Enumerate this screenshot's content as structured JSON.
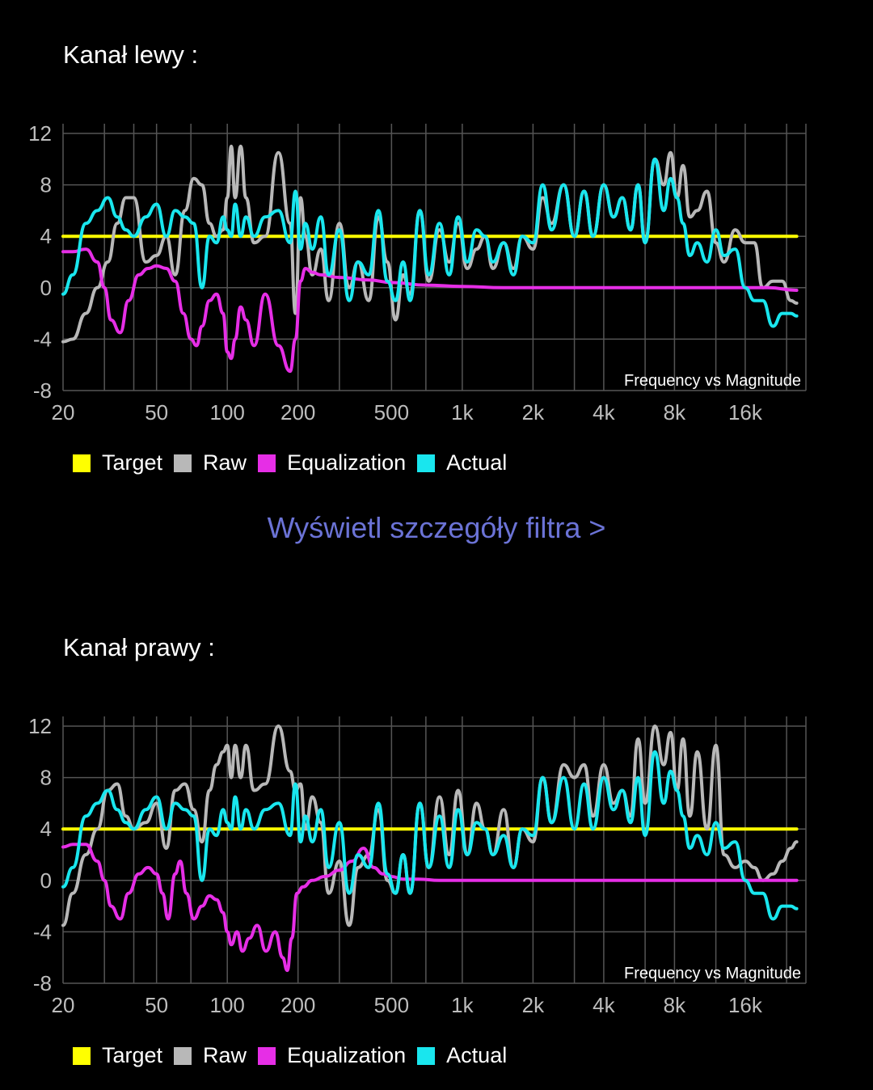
{
  "link": {
    "filter_details": "Wyświetl szczegóły filtra >"
  },
  "legend": {
    "target": "Target",
    "raw": "Raw",
    "equalization": "Equalization",
    "actual": "Actual"
  },
  "colors": {
    "target": "#ffff00",
    "raw": "#b8b8b8",
    "equalization": "#e62ee6",
    "actual": "#19e6ee",
    "grid": "#555555",
    "link": "#6b73d6"
  },
  "chart_data": [
    {
      "title": "Kanał lewy  :",
      "type": "line",
      "annotation": "Frequency vs Magnitude",
      "x_scale": "log",
      "xlim": [
        20,
        29000
      ],
      "ylim": [
        -8,
        12
      ],
      "x_ticks": [
        20,
        50,
        100,
        200,
        500,
        1000,
        2000,
        4000,
        8000,
        16000
      ],
      "x_tick_labels": [
        "20",
        "50",
        "100",
        "200",
        "500",
        "1k",
        "2k",
        "4k",
        "8k",
        "16k"
      ],
      "y_ticks": [
        12,
        8,
        4,
        0,
        -4,
        -8
      ],
      "y_tick_labels": [
        "12",
        "8",
        "4",
        "0",
        "-4",
        "-8"
      ],
      "grid": true,
      "legend_position": "bottom-left",
      "series": [
        {
          "name": "Target",
          "color": "#ffff00",
          "x": [
            20,
            26500
          ],
          "y": [
            4,
            4
          ]
        },
        {
          "name": "Raw",
          "color": "#b8b8b8",
          "x": [
            20,
            22,
            25,
            28,
            31,
            34,
            37,
            40,
            45,
            50,
            55,
            60,
            66,
            72,
            78,
            84,
            90,
            96,
            100,
            104,
            108,
            114,
            120,
            130,
            145,
            165,
            185,
            195,
            205,
            215,
            230,
            250,
            270,
            300,
            330,
            360,
            400,
            440,
            480,
            520,
            560,
            600,
            660,
            720,
            800,
            880,
            960,
            1050,
            1150,
            1250,
            1350,
            1500,
            1650,
            1800,
            2000,
            2200,
            2400,
            2700,
            3000,
            3300,
            3600,
            4000,
            4400,
            4800,
            5200,
            5600,
            6000,
            6600,
            7200,
            7700,
            8200,
            8700,
            9300,
            10000,
            11000,
            12000,
            13000,
            14500,
            16000,
            17500,
            19000,
            21000,
            23000,
            25000,
            26500
          ],
          "y": [
            -4.2,
            -4,
            -2,
            0,
            2,
            5,
            7,
            7,
            2,
            2.5,
            4,
            1,
            6,
            8.5,
            8,
            5,
            4,
            4.5,
            7,
            11,
            7,
            11,
            7,
            3.5,
            4,
            10.5,
            5,
            -2,
            7,
            4,
            1,
            3,
            -1,
            5,
            0,
            2,
            -1,
            5.5,
            2,
            -2.5,
            1,
            -0.5,
            6,
            0.5,
            4.5,
            2,
            5,
            1.5,
            3,
            4,
            1.5,
            3.5,
            1.5,
            4,
            3,
            7,
            5,
            8,
            4,
            7.5,
            4,
            8,
            5.5,
            7,
            4.5,
            8,
            3.5,
            10,
            8,
            10.5,
            7,
            9.5,
            5.5,
            6,
            7.5,
            3.5,
            2,
            4.5,
            3.5,
            3.5,
            0,
            0.5,
            0.5,
            -1,
            -1.2
          ]
        },
        {
          "name": "Equalization",
          "color": "#e62ee6",
          "x": [
            20,
            22,
            25,
            28,
            30,
            32,
            35,
            38,
            42,
            46,
            50,
            55,
            60,
            65,
            70,
            74,
            78,
            84,
            90,
            96,
            100,
            104,
            108,
            114,
            120,
            130,
            145,
            165,
            185,
            195,
            205,
            215,
            230,
            250,
            300,
            400,
            500,
            700,
            1000,
            1500,
            2000,
            4000,
            8000,
            16000,
            20000,
            26500
          ],
          "y": [
            2.8,
            2.8,
            3,
            2,
            0,
            -2.5,
            -3.5,
            -1,
            1,
            1.5,
            1.7,
            1.5,
            0.5,
            -2,
            -4,
            -4.5,
            -3,
            -1,
            -0.5,
            -2,
            -5,
            -5.5,
            -4,
            -1.5,
            -2.5,
            -4.5,
            -0.5,
            -4.5,
            -6.5,
            -4,
            0.5,
            1.5,
            1.2,
            1,
            0.8,
            0.6,
            0.4,
            0.2,
            0.1,
            0,
            0,
            0,
            0,
            0,
            0,
            -0.2
          ]
        },
        {
          "name": "Actual",
          "color": "#19e6ee",
          "x": [
            20,
            22,
            25,
            28,
            31,
            34,
            37,
            40,
            45,
            50,
            55,
            60,
            66,
            72,
            78,
            84,
            90,
            96,
            100,
            104,
            108,
            114,
            120,
            130,
            145,
            165,
            185,
            195,
            205,
            215,
            230,
            250,
            270,
            300,
            330,
            360,
            400,
            440,
            480,
            520,
            560,
            600,
            660,
            720,
            800,
            880,
            960,
            1050,
            1150,
            1250,
            1350,
            1500,
            1650,
            1800,
            2000,
            2200,
            2400,
            2700,
            3000,
            3300,
            3600,
            4000,
            4400,
            4800,
            5200,
            5600,
            6000,
            6600,
            7200,
            7700,
            8200,
            8700,
            9300,
            10000,
            11000,
            12000,
            13000,
            14500,
            16000,
            17500,
            19000,
            21000,
            23000,
            25000,
            26500
          ],
          "y": [
            -0.5,
            1,
            5,
            6,
            7,
            5.5,
            4.5,
            4,
            5.5,
            6.5,
            4,
            6,
            5.5,
            5,
            0,
            4,
            3.5,
            5.5,
            4.5,
            4,
            6.5,
            4,
            5.5,
            4,
            5.5,
            6,
            3.5,
            7.5,
            3,
            5,
            3,
            5.5,
            1,
            4.5,
            -1,
            2,
            1,
            6,
            0.5,
            -1,
            2,
            -1,
            6,
            1,
            5,
            1,
            5.5,
            2,
            4.5,
            4,
            2,
            3.5,
            1,
            4,
            3.5,
            8,
            4.5,
            8,
            4,
            7.5,
            4,
            8,
            5.5,
            7,
            4.5,
            8,
            3.5,
            10,
            6,
            8.5,
            7,
            5,
            2.5,
            3.5,
            2,
            4.5,
            2.5,
            3,
            0,
            -1,
            -1,
            -3,
            -2,
            -2,
            -2.2
          ]
        }
      ]
    },
    {
      "title": "Kanał prawy  :",
      "type": "line",
      "annotation": "Frequency vs Magnitude",
      "x_scale": "log",
      "xlim": [
        20,
        29000
      ],
      "ylim": [
        -8,
        12
      ],
      "x_ticks": [
        20,
        50,
        100,
        200,
        500,
        1000,
        2000,
        4000,
        8000,
        16000
      ],
      "x_tick_labels": [
        "20",
        "50",
        "100",
        "200",
        "500",
        "1k",
        "2k",
        "4k",
        "8k",
        "16k"
      ],
      "y_ticks": [
        12,
        8,
        4,
        0,
        -4,
        -8
      ],
      "y_tick_labels": [
        "12",
        "8",
        "4",
        "0",
        "-4",
        "-8"
      ],
      "grid": true,
      "legend_position": "bottom-left",
      "series": [
        {
          "name": "Target",
          "color": "#ffff00",
          "x": [
            20,
            26500
          ],
          "y": [
            4,
            4
          ]
        },
        {
          "name": "Raw",
          "color": "#b8b8b8",
          "x": [
            20,
            22,
            25,
            28,
            31,
            34,
            37,
            40,
            45,
            50,
            55,
            60,
            66,
            72,
            78,
            84,
            90,
            96,
            100,
            104,
            108,
            114,
            120,
            130,
            145,
            165,
            185,
            195,
            205,
            215,
            230,
            250,
            270,
            300,
            330,
            360,
            400,
            440,
            480,
            520,
            560,
            600,
            660,
            720,
            800,
            880,
            960,
            1050,
            1150,
            1250,
            1350,
            1500,
            1650,
            1800,
            2000,
            2200,
            2400,
            2700,
            3000,
            3300,
            3600,
            4000,
            4400,
            4800,
            5200,
            5600,
            6000,
            6600,
            7200,
            7700,
            8200,
            8700,
            9300,
            10000,
            11000,
            12000,
            13000,
            14500,
            16000,
            17500,
            19000,
            21000,
            23000,
            25000,
            26500
          ],
          "y": [
            -3.5,
            -1,
            2,
            4,
            7,
            7.5,
            5,
            4,
            4.5,
            6,
            2.5,
            7,
            7.5,
            5.5,
            3,
            7,
            9,
            10,
            10.5,
            8,
            10.5,
            8,
            10.5,
            7,
            7.5,
            12,
            8.5,
            7,
            7.5,
            4,
            6.5,
            4.5,
            -1,
            1.5,
            -3.5,
            1,
            2,
            5.5,
            0,
            -1,
            2,
            -1,
            6,
            1,
            6.5,
            2,
            7,
            2,
            6,
            4,
            2,
            5.5,
            1,
            4,
            3,
            8,
            4.5,
            9,
            8,
            9,
            5,
            9,
            6,
            7,
            5,
            11,
            6,
            12,
            9,
            11.5,
            7,
            11,
            5,
            10,
            4,
            10.5,
            2,
            1,
            1.5,
            1,
            0,
            0.5,
            1.5,
            2.5,
            3
          ]
        },
        {
          "name": "Equalization",
          "color": "#e62ee6",
          "x": [
            20,
            22,
            25,
            28,
            30,
            32,
            35,
            38,
            42,
            46,
            50,
            53,
            56,
            60,
            63,
            67,
            72,
            78,
            84,
            90,
            96,
            100,
            104,
            110,
            116,
            124,
            134,
            146,
            160,
            172,
            180,
            188,
            198,
            210,
            230,
            260,
            300,
            340,
            380,
            420,
            460,
            500,
            560,
            650,
            800,
            1000,
            2000,
            4000,
            8000,
            16000,
            20000,
            26500
          ],
          "y": [
            2.6,
            2.8,
            2.8,
            1.5,
            0,
            -2,
            -3,
            -1,
            0.5,
            1,
            0.5,
            -1,
            -3,
            0.5,
            1.5,
            -1,
            -3,
            -2,
            -1.2,
            -1.5,
            -2.5,
            -4,
            -5,
            -4,
            -5.5,
            -4.5,
            -3.5,
            -5.5,
            -4,
            -6,
            -7,
            -4.5,
            -1,
            -0.5,
            0,
            0.3,
            0.8,
            1.5,
            2.5,
            1,
            0.5,
            0.3,
            0.1,
            0.1,
            0,
            0,
            0,
            0,
            0,
            0,
            0,
            0
          ]
        },
        {
          "name": "Actual",
          "color": "#19e6ee",
          "x": [
            20,
            22,
            25,
            28,
            31,
            34,
            37,
            40,
            45,
            50,
            55,
            60,
            66,
            72,
            78,
            84,
            90,
            96,
            100,
            104,
            108,
            114,
            120,
            130,
            145,
            165,
            185,
            195,
            205,
            215,
            230,
            250,
            270,
            300,
            330,
            360,
            400,
            440,
            480,
            520,
            560,
            600,
            660,
            720,
            800,
            880,
            960,
            1050,
            1150,
            1250,
            1350,
            1500,
            1650,
            1800,
            2000,
            2200,
            2400,
            2700,
            3000,
            3300,
            3600,
            4000,
            4400,
            4800,
            5200,
            5600,
            6000,
            6600,
            7200,
            7700,
            8200,
            8700,
            9300,
            10000,
            11000,
            12000,
            13000,
            14500,
            16000,
            17500,
            19000,
            21000,
            23000,
            25000,
            26500
          ],
          "y": [
            -0.5,
            1,
            5,
            6,
            7,
            5.5,
            4.5,
            4,
            5.5,
            6.5,
            4,
            6,
            5.5,
            5,
            0,
            4,
            3.5,
            5.5,
            4.5,
            4,
            6.5,
            4,
            5.5,
            4,
            5.5,
            6,
            3.5,
            7.5,
            3,
            5,
            3,
            5.5,
            1,
            4.5,
            -1,
            2,
            1,
            6,
            0.5,
            -1,
            2,
            -1,
            6,
            1,
            5,
            1,
            5.5,
            2,
            4.5,
            4,
            2,
            3.5,
            1,
            4,
            3.5,
            8,
            4.5,
            8,
            4,
            7.5,
            4,
            8,
            5.5,
            7,
            4.5,
            8,
            3.5,
            10,
            6,
            8.5,
            7,
            5,
            2.5,
            3.5,
            2,
            4.5,
            2.5,
            3,
            0,
            -1,
            -1,
            -3,
            -2,
            -2,
            -2.2
          ]
        }
      ]
    }
  ]
}
